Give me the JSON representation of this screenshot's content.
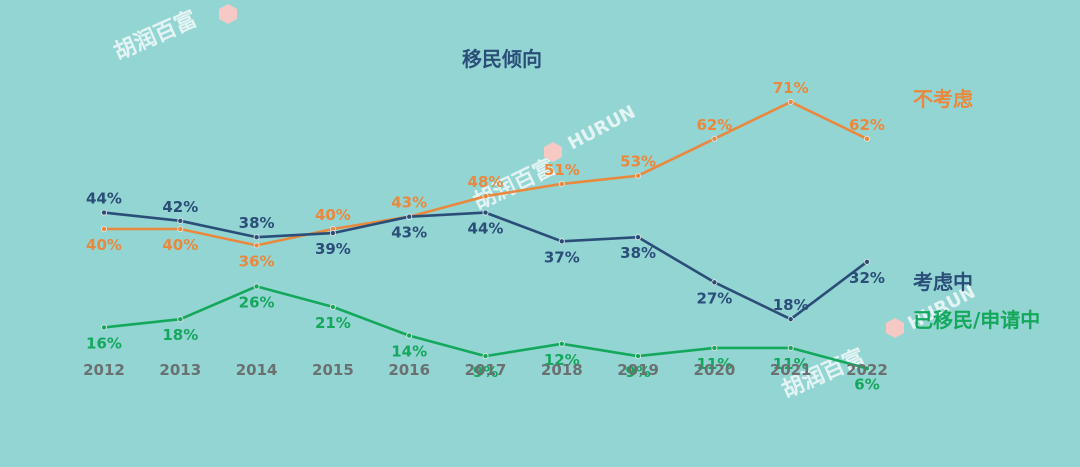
{
  "watermark": {
    "cn_text": "胡润百富",
    "en_text": "HURUN",
    "logo_color": "#f6c9c4"
  },
  "chart_data": {
    "type": "line",
    "title": "移民倾向",
    "categories": [
      "2012",
      "2013",
      "2014",
      "2015",
      "2016",
      "2017",
      "2018",
      "2019",
      "2020",
      "2021",
      "2022"
    ],
    "ylim": [
      0,
      80
    ],
    "grid": false,
    "legend": "right",
    "series": [
      {
        "name": "不考虑",
        "color": "#e8893e",
        "values": [
          40,
          40,
          36,
          40,
          43,
          48,
          51,
          53,
          62,
          71,
          62
        ],
        "labels": [
          "40%",
          "40%",
          "36%",
          "40%",
          "43%",
          "48%",
          "51%",
          "53%",
          "62%",
          "71%",
          "62%"
        ]
      },
      {
        "name": "考虑中",
        "color": "#2b4e78",
        "values": [
          44,
          42,
          38,
          39,
          43,
          44,
          37,
          38,
          27,
          18,
          32
        ],
        "labels": [
          "44%",
          "42%",
          "38%",
          "39%",
          "43%",
          "44%",
          "37%",
          "38%",
          "27%",
          "18%",
          "32%"
        ]
      },
      {
        "name": "已移民/申请中",
        "color": "#14a85c",
        "values": [
          16,
          18,
          26,
          21,
          14,
          9,
          12,
          9,
          11,
          11,
          6
        ],
        "labels": [
          "16%",
          "18%",
          "26%",
          "21%",
          "14%",
          "9%",
          "12%",
          "9%",
          "11%",
          "11%",
          "6%"
        ]
      }
    ]
  }
}
